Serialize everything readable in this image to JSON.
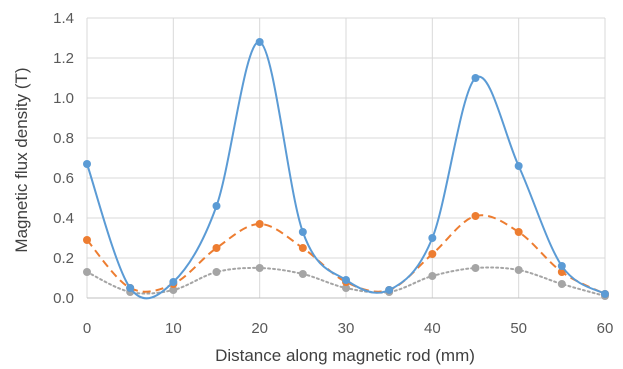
{
  "chart_data": {
    "type": "line",
    "xlabel": "Distance along magnetic rod (mm)",
    "ylabel": "Magnetic flux density (T)",
    "xlim": [
      0,
      60
    ],
    "ylim": [
      0,
      1.4
    ],
    "xticks": [
      0,
      10,
      20,
      30,
      40,
      50,
      60
    ],
    "yticks": [
      0.0,
      0.2,
      0.4,
      0.6,
      0.8,
      1.0,
      1.2,
      1.4
    ],
    "ytick_labels": [
      "0.0",
      "0.2",
      "0.4",
      "0.6",
      "0.8",
      "1.0",
      "1.2",
      "1.4"
    ],
    "grid": true,
    "legend": "none",
    "x": [
      0,
      5,
      10,
      15,
      20,
      25,
      30,
      35,
      40,
      45,
      50,
      55,
      60
    ],
    "series": [
      {
        "color": "#5b9bd5",
        "style": "solid",
        "values": [
          0.67,
          0.05,
          0.08,
          0.46,
          1.28,
          0.33,
          0.09,
          0.04,
          0.3,
          1.1,
          0.66,
          0.16,
          0.02
        ]
      },
      {
        "color": "#ed7d31",
        "style": "dashed",
        "values": [
          0.29,
          0.05,
          0.07,
          0.25,
          0.37,
          0.25,
          0.08,
          0.04,
          0.22,
          0.41,
          0.33,
          0.13,
          0.02
        ]
      },
      {
        "color": "#a5a5a5",
        "style": "dotted",
        "values": [
          0.13,
          0.03,
          0.04,
          0.13,
          0.15,
          0.12,
          0.05,
          0.03,
          0.11,
          0.15,
          0.14,
          0.07,
          0.01
        ]
      }
    ]
  }
}
